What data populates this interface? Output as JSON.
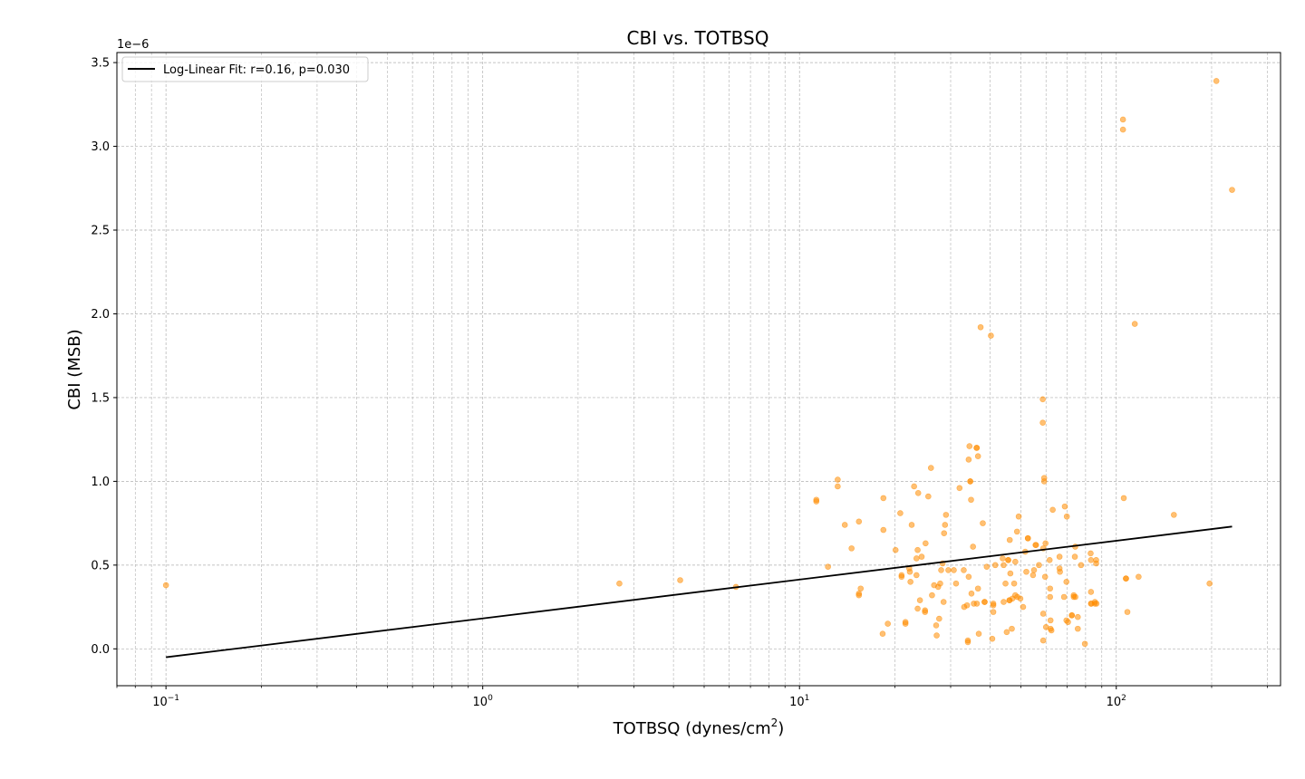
{
  "chart_data": {
    "type": "scatter",
    "title": "CBI vs. TOTBSQ",
    "xlabel": "TOTBSQ (dynes/cm",
    "xlabel_sup": "2",
    "xlabel_close": ")",
    "ylabel": "CBI (MSB)",
    "y_offset_label": "1e−6",
    "x_scale": "log",
    "xlim": [
      0.07,
      330
    ],
    "ylim": [
      -0.22,
      3.56
    ],
    "grid": true,
    "legend_position": "top-left",
    "x_ticks": [
      {
        "value": 0.1,
        "base": "10",
        "exp": "−1"
      },
      {
        "value": 1,
        "base": "10",
        "exp": "0"
      },
      {
        "value": 10,
        "base": "10",
        "exp": "1"
      },
      {
        "value": 100,
        "base": "10",
        "exp": "2"
      }
    ],
    "y_ticks": [
      {
        "value": 0.0,
        "label": "0.0"
      },
      {
        "value": 0.5,
        "label": "0.5"
      },
      {
        "value": 1.0,
        "label": "1.0"
      },
      {
        "value": 1.5,
        "label": "1.5"
      },
      {
        "value": 2.0,
        "label": "2.0"
      },
      {
        "value": 2.5,
        "label": "2.5"
      },
      {
        "value": 3.0,
        "label": "3.0"
      },
      {
        "value": 3.5,
        "label": "3.5"
      }
    ],
    "series": [
      {
        "kind": "points",
        "color": "#ff8c00",
        "points": [
          [
            0.1,
            0.38
          ],
          [
            2.7,
            0.39
          ],
          [
            4.2,
            0.41
          ],
          [
            6.3,
            0.37
          ],
          [
            11.3,
            0.88
          ],
          [
            11.3,
            0.89
          ],
          [
            12.3,
            0.49
          ],
          [
            13.2,
            1.01
          ],
          [
            13.2,
            0.97
          ],
          [
            13.9,
            0.74
          ],
          [
            14.6,
            0.6
          ],
          [
            15.4,
            0.76
          ],
          [
            15.4,
            0.33
          ],
          [
            15.6,
            0.36
          ],
          [
            15.4,
            0.32
          ],
          [
            18.4,
            0.9
          ],
          [
            18.4,
            0.71
          ],
          [
            18.3,
            0.09
          ],
          [
            19.0,
            0.15
          ],
          [
            20.1,
            0.59
          ],
          [
            20.8,
            0.81
          ],
          [
            21.0,
            0.44
          ],
          [
            21.0,
            0.43
          ],
          [
            21.6,
            0.16
          ],
          [
            21.6,
            0.15
          ],
          [
            22.2,
            0.48
          ],
          [
            22.3,
            0.46
          ],
          [
            22.4,
            0.4
          ],
          [
            22.6,
            0.74
          ],
          [
            23.0,
            0.97
          ],
          [
            23.7,
            0.93
          ],
          [
            23.4,
            0.54
          ],
          [
            23.6,
            0.59
          ],
          [
            23.4,
            0.44
          ],
          [
            23.6,
            0.24
          ],
          [
            24.0,
            0.29
          ],
          [
            24.3,
            0.55
          ],
          [
            25.0,
            0.63
          ],
          [
            24.9,
            0.23
          ],
          [
            24.9,
            0.22
          ],
          [
            25.5,
            0.91
          ],
          [
            26.0,
            1.08
          ],
          [
            26.2,
            0.32
          ],
          [
            26.6,
            0.38
          ],
          [
            27.0,
            0.14
          ],
          [
            27.1,
            0.08
          ],
          [
            27.4,
            0.37
          ],
          [
            27.6,
            0.18
          ],
          [
            27.8,
            0.39
          ],
          [
            28.0,
            0.47
          ],
          [
            28.3,
            0.51
          ],
          [
            28.5,
            0.28
          ],
          [
            28.6,
            0.69
          ],
          [
            28.8,
            0.74
          ],
          [
            29.0,
            0.8
          ],
          [
            29.5,
            0.47
          ],
          [
            30.7,
            0.47
          ],
          [
            31.2,
            0.39
          ],
          [
            32.0,
            0.96
          ],
          [
            33.0,
            0.47
          ],
          [
            33.1,
            0.25
          ],
          [
            33.8,
            0.26
          ],
          [
            34.0,
            0.05
          ],
          [
            34.0,
            0.04
          ],
          [
            34.2,
            0.43
          ],
          [
            34.4,
            1.21
          ],
          [
            34.2,
            1.13
          ],
          [
            34.6,
            1.0
          ],
          [
            34.6,
            1.0
          ],
          [
            34.8,
            0.89
          ],
          [
            34.9,
            0.33
          ],
          [
            35.3,
            0.61
          ],
          [
            35.5,
            0.27
          ],
          [
            36.2,
            1.2
          ],
          [
            36.3,
            1.2
          ],
          [
            36.3,
            0.27
          ],
          [
            36.6,
            1.15
          ],
          [
            36.6,
            0.36
          ],
          [
            36.8,
            0.09
          ],
          [
            37.3,
            1.92
          ],
          [
            37.9,
            0.75
          ],
          [
            38.4,
            0.28
          ],
          [
            38.4,
            0.28
          ],
          [
            39.0,
            0.49
          ],
          [
            40.2,
            1.87
          ],
          [
            40.6,
            0.06
          ],
          [
            40.9,
            0.27
          ],
          [
            40.9,
            0.26
          ],
          [
            40.9,
            0.22
          ],
          [
            41.5,
            0.5
          ],
          [
            43.8,
            0.54
          ],
          [
            44.1,
            0.28
          ],
          [
            44.1,
            0.5
          ],
          [
            44.7,
            0.39
          ],
          [
            45.1,
            0.1
          ],
          [
            45.6,
            0.53
          ],
          [
            45.6,
            0.53
          ],
          [
            46.0,
            0.29
          ],
          [
            46.0,
            0.29
          ],
          [
            46.1,
            0.65
          ],
          [
            46.3,
            0.45
          ],
          [
            46.8,
            0.12
          ],
          [
            47.0,
            0.3
          ],
          [
            47.6,
            0.39
          ],
          [
            48.0,
            0.52
          ],
          [
            48.0,
            0.32
          ],
          [
            48.6,
            0.7
          ],
          [
            48.7,
            0.31
          ],
          [
            49.2,
            0.79
          ],
          [
            49.8,
            0.3
          ],
          [
            50.8,
            0.25
          ],
          [
            51.6,
            0.58
          ],
          [
            52.0,
            0.46
          ],
          [
            52.6,
            0.66
          ],
          [
            52.6,
            0.66
          ],
          [
            54.6,
            0.44
          ],
          [
            55.0,
            0.47
          ],
          [
            55.6,
            0.62
          ],
          [
            55.8,
            0.62
          ],
          [
            57.0,
            0.5
          ],
          [
            58.6,
            1.49
          ],
          [
            58.6,
            1.35
          ],
          [
            58.8,
            0.6
          ],
          [
            58.8,
            0.21
          ],
          [
            58.8,
            0.05
          ],
          [
            59.2,
            1.02
          ],
          [
            59.2,
            1.0
          ],
          [
            59.6,
            0.43
          ],
          [
            59.8,
            0.63
          ],
          [
            60.0,
            0.13
          ],
          [
            61.6,
            0.53
          ],
          [
            61.8,
            0.36
          ],
          [
            61.8,
            0.31
          ],
          [
            62.0,
            0.17
          ],
          [
            62.0,
            0.12
          ],
          [
            62.4,
            0.11
          ],
          [
            63.0,
            0.83
          ],
          [
            66.2,
            0.55
          ],
          [
            66.2,
            0.48
          ],
          [
            66.4,
            0.46
          ],
          [
            68.4,
            0.31
          ],
          [
            68.8,
            0.85
          ],
          [
            69.8,
            0.79
          ],
          [
            69.6,
            0.4
          ],
          [
            69.6,
            0.17
          ],
          [
            70.4,
            0.16
          ],
          [
            72.4,
            0.2
          ],
          [
            72.4,
            0.2
          ],
          [
            73.4,
            0.31
          ],
          [
            73.4,
            0.32
          ],
          [
            74.0,
            0.55
          ],
          [
            74.2,
            0.61
          ],
          [
            74.3,
            0.31
          ],
          [
            75.6,
            0.19
          ],
          [
            75.6,
            0.12
          ],
          [
            77.4,
            0.5
          ],
          [
            79.6,
            0.03
          ],
          [
            83.0,
            0.57
          ],
          [
            83.2,
            0.53
          ],
          [
            83.2,
            0.34
          ],
          [
            83.2,
            0.27
          ],
          [
            83.4,
            0.27
          ],
          [
            85.6,
            0.28
          ],
          [
            85.6,
            0.27
          ],
          [
            86.4,
            0.51
          ],
          [
            86.4,
            0.53
          ],
          [
            86.6,
            0.27
          ],
          [
            105.0,
            3.16
          ],
          [
            105.0,
            3.1
          ],
          [
            105.6,
            0.9
          ],
          [
            107.2,
            0.42
          ],
          [
            107.4,
            0.42
          ],
          [
            108.4,
            0.22
          ],
          [
            114.4,
            1.94
          ],
          [
            117.6,
            0.43
          ],
          [
            152.0,
            0.8
          ],
          [
            197.0,
            0.39
          ],
          [
            207.0,
            3.39
          ],
          [
            232.0,
            2.74
          ]
        ]
      },
      {
        "kind": "fit_line",
        "name": "Log-Linear Fit: r=0.16, p=0.030",
        "color": "#000000",
        "x": [
          0.1,
          232.0
        ],
        "y": [
          -0.05,
          0.73
        ]
      }
    ]
  }
}
